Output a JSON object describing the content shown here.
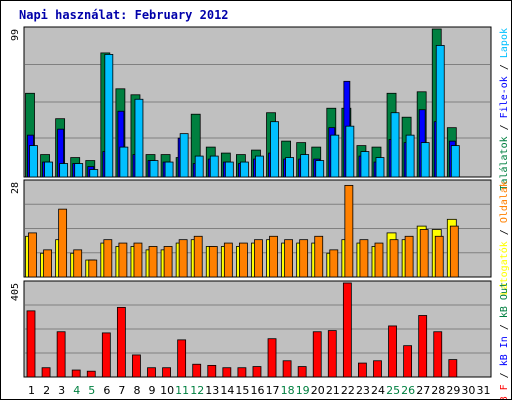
{
  "title": "Napi használat: February 2012",
  "colors": {
    "title": "#0000aa",
    "panel_bg": "#c0c0c0",
    "gridline": "#808080",
    "hits": "#008040",
    "files": "#0000ff",
    "pages": "#00c0ff",
    "visits": "#ffff00",
    "kb_in": "#ff8000",
    "kb_out": "#ff8000",
    "kb_f": "#ff0000",
    "label_weekday": "#000000",
    "label_weekend": "#008040"
  },
  "chart_data": [
    {
      "type": "bar",
      "panel": "hits-files-pages",
      "categories": [
        "1",
        "2",
        "3",
        "4",
        "5",
        "6",
        "7",
        "8",
        "9",
        "10",
        "11",
        "12",
        "13",
        "14",
        "15",
        "16",
        "17",
        "18",
        "19",
        "20",
        "21",
        "22",
        "23",
        "24",
        "25",
        "26",
        "27",
        "28",
        "29",
        "30",
        "31"
      ],
      "weekend_days": [
        "4",
        "5",
        "11",
        "12",
        "18",
        "19",
        "25",
        "26"
      ],
      "ymax_label": "99",
      "ylim": [
        0,
        99
      ],
      "series": [
        {
          "key": "hits",
          "name": "Találatok",
          "values": [
            56,
            15,
            39,
            13,
            11,
            83,
            59,
            55,
            15,
            15,
            13,
            42,
            20,
            16,
            15,
            18,
            43,
            24,
            23,
            20,
            46,
            46,
            21,
            20,
            56,
            40,
            57,
            99,
            33,
            0,
            0
          ]
        },
        {
          "key": "files",
          "name": "File-ok",
          "values": [
            28,
            10,
            32,
            9,
            7,
            17,
            44,
            15,
            11,
            10,
            26,
            9,
            12,
            10,
            9,
            12,
            16,
            12,
            12,
            12,
            33,
            64,
            14,
            10,
            25,
            23,
            45,
            37,
            24,
            0,
            0
          ]
        },
        {
          "key": "pages",
          "name": "Lapok",
          "values": [
            21,
            10,
            9,
            9,
            5,
            82,
            20,
            52,
            11,
            10,
            29,
            14,
            14,
            10,
            10,
            14,
            37,
            13,
            15,
            11,
            28,
            34,
            17,
            13,
            43,
            28,
            23,
            88,
            21,
            0,
            0
          ]
        }
      ]
    },
    {
      "type": "bar",
      "panel": "visits",
      "categories": [
        "1",
        "2",
        "3",
        "4",
        "5",
        "6",
        "7",
        "8",
        "9",
        "10",
        "11",
        "12",
        "13",
        "14",
        "15",
        "16",
        "17",
        "18",
        "19",
        "20",
        "21",
        "22",
        "23",
        "24",
        "25",
        "26",
        "27",
        "28",
        "29",
        "30",
        "31"
      ],
      "ymax_label": "28",
      "ylim": [
        0,
        28
      ],
      "series": [
        {
          "key": "visits",
          "name": "Látogatók",
          "values": [
            12,
            7,
            11,
            7,
            5,
            10,
            9,
            9,
            8,
            8,
            10,
            11,
            9,
            9,
            9,
            10,
            11,
            10,
            10,
            10,
            7,
            11,
            10,
            9,
            13,
            11,
            15,
            14,
            17,
            0,
            0
          ]
        },
        {
          "key": "kb_in",
          "name": "Oldalak",
          "values": [
            13,
            8,
            20,
            8,
            5,
            11,
            10,
            10,
            9,
            9,
            11,
            12,
            9,
            10,
            10,
            11,
            12,
            11,
            11,
            12,
            8,
            27,
            11,
            10,
            11,
            12,
            14,
            12,
            15,
            0,
            0
          ]
        }
      ]
    },
    {
      "type": "bar",
      "panel": "kbytes",
      "categories": [
        "1",
        "2",
        "3",
        "4",
        "5",
        "6",
        "7",
        "8",
        "9",
        "10",
        "11",
        "12",
        "13",
        "14",
        "15",
        "16",
        "17",
        "18",
        "19",
        "20",
        "21",
        "22",
        "23",
        "24",
        "25",
        "26",
        "27",
        "28",
        "29",
        "30",
        "31"
      ],
      "ymax_label": "405",
      "ylim": [
        0,
        405
      ],
      "series": [
        {
          "key": "kb_f",
          "name": "kB F",
          "values": [
            285,
            40,
            195,
            30,
            25,
            190,
            300,
            95,
            40,
            40,
            160,
            55,
            50,
            40,
            40,
            45,
            165,
            70,
            45,
            195,
            200,
            405,
            60,
            70,
            220,
            135,
            265,
            195,
            75,
            0,
            0
          ]
        }
      ]
    }
  ],
  "right_legends": [
    {
      "panel": "hits-files-pages",
      "items": [
        {
          "text": "Találatok",
          "color": "#008040"
        },
        {
          "text": " / ",
          "color": "#000000"
        },
        {
          "text": "File-ok",
          "color": "#0000ff"
        },
        {
          "text": " / ",
          "color": "#000000"
        },
        {
          "text": "Lapok",
          "color": "#00c0ff"
        }
      ]
    },
    {
      "panel": "visits",
      "items": [
        {
          "text": "Látogatók",
          "color": "#ffff00"
        },
        {
          "text": " / ",
          "color": "#000000"
        },
        {
          "text": "Oldalak",
          "color": "#ff8000"
        }
      ]
    },
    {
      "panel": "kbytes",
      "items": [
        {
          "text": "kB F",
          "color": "#ff0000"
        },
        {
          "text": " / ",
          "color": "#000000"
        },
        {
          "text": "kB In",
          "color": "#0000ff"
        },
        {
          "text": " / ",
          "color": "#000000"
        },
        {
          "text": "kB Out",
          "color": "#008040"
        }
      ]
    }
  ]
}
